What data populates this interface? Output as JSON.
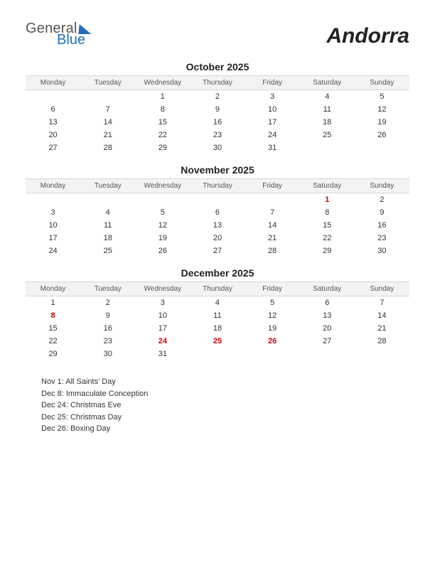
{
  "logo": {
    "word1": "General",
    "word2": "Blue",
    "color_gray": "#555555",
    "color_blue": "#1e6fb8"
  },
  "country": "Andorra",
  "day_headers": [
    "Monday",
    "Tuesday",
    "Wednesday",
    "Thursday",
    "Friday",
    "Saturday",
    "Sunday"
  ],
  "months": [
    {
      "title": "October 2025",
      "weeks": [
        [
          "",
          "",
          "1",
          "2",
          "3",
          "4",
          "5"
        ],
        [
          "6",
          "7",
          "8",
          "9",
          "10",
          "11",
          "12"
        ],
        [
          "13",
          "14",
          "15",
          "16",
          "17",
          "18",
          "19"
        ],
        [
          "20",
          "21",
          "22",
          "23",
          "24",
          "25",
          "26"
        ],
        [
          "27",
          "28",
          "29",
          "30",
          "31",
          "",
          ""
        ]
      ],
      "holidays": []
    },
    {
      "title": "November 2025",
      "weeks": [
        [
          "",
          "",
          "",
          "",
          "",
          "1",
          "2"
        ],
        [
          "3",
          "4",
          "5",
          "6",
          "7",
          "8",
          "9"
        ],
        [
          "10",
          "11",
          "12",
          "13",
          "14",
          "15",
          "16"
        ],
        [
          "17",
          "18",
          "19",
          "20",
          "21",
          "22",
          "23"
        ],
        [
          "24",
          "25",
          "26",
          "27",
          "28",
          "29",
          "30"
        ]
      ],
      "holidays": [
        "1"
      ]
    },
    {
      "title": "December 2025",
      "weeks": [
        [
          "1",
          "2",
          "3",
          "4",
          "5",
          "6",
          "7"
        ],
        [
          "8",
          "9",
          "10",
          "11",
          "12",
          "13",
          "14"
        ],
        [
          "15",
          "16",
          "17",
          "18",
          "19",
          "20",
          "21"
        ],
        [
          "22",
          "23",
          "24",
          "25",
          "26",
          "27",
          "28"
        ],
        [
          "29",
          "30",
          "31",
          "",
          "",
          "",
          ""
        ]
      ],
      "holidays": [
        "8",
        "24",
        "25",
        "26"
      ]
    }
  ],
  "holiday_list": [
    "Nov 1: All Saints’ Day",
    "Dec 8: Immaculate Conception",
    "Dec 24: Christmas Eve",
    "Dec 25: Christmas Day",
    "Dec 26: Boxing Day"
  ],
  "style": {
    "header_bg": "#f3f3f3",
    "border_color": "#d8d8d8",
    "holiday_color": "#cc0000",
    "text_color": "#333333",
    "page_bg": "#ffffff"
  }
}
